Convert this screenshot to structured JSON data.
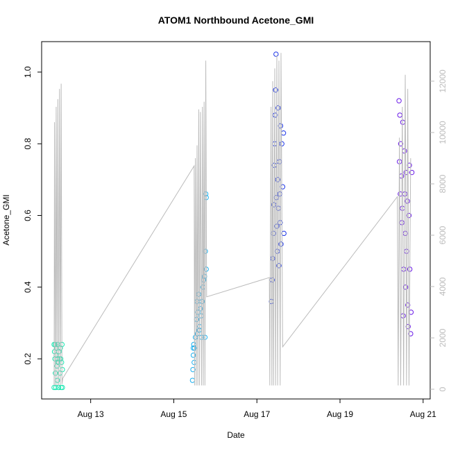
{
  "chart_data": {
    "type": "scatter",
    "title": "ATOM1 Northbound Acetone_GMI",
    "x_label": "Date",
    "y_label": "Acetone_GMI",
    "xlim": [
      11.82,
      21.17
    ],
    "xticks": [
      {
        "value": 13,
        "label": "Aug 13"
      },
      {
        "value": 15,
        "label": "Aug 15"
      },
      {
        "value": 17,
        "label": "Aug 17"
      },
      {
        "value": 19,
        "label": "Aug 19"
      },
      {
        "value": 21,
        "label": "Aug 21"
      }
    ],
    "ylim": [
      0.088,
      1.085
    ],
    "yticks": [
      0.2,
      0.4,
      0.6,
      0.8,
      {
        "value": 1,
        "label": "1.0"
      }
    ],
    "y2lim": [
      -378,
      13540
    ],
    "y2ticks": [
      0,
      2000,
      4000,
      6000,
      8000,
      10000,
      12000
    ],
    "y2color": "#bbbbbb",
    "series": [
      {
        "color": "#17e6b0",
        "x": [
          12.12,
          12.12,
          12.13,
          12.14,
          12.15,
          12.15,
          12.16,
          12.17,
          12.18,
          12.19,
          12.2,
          12.2,
          12.21,
          12.22,
          12.23,
          12.24,
          12.25,
          12.26,
          12.27,
          12.28,
          12.29,
          12.3,
          12.31,
          12.32,
          12.32
        ],
        "values": [
          0.24,
          0.12,
          0.22,
          0.2,
          0.16,
          0.24,
          0.12,
          0.21,
          0.23,
          0.18,
          0.2,
          0.14,
          0.24,
          0.19,
          0.12,
          0.22,
          0.2,
          0.16,
          0.23,
          0.2,
          0.12,
          0.19,
          0.24,
          0.17,
          0.12
        ]
      },
      {
        "color": "#1ab0f0",
        "x": [
          15.45,
          15.46,
          15.47,
          15.47,
          15.48,
          15.49,
          15.5,
          15.52,
          15.55,
          15.56,
          15.57,
          15.58,
          15.6,
          15.61,
          15.62,
          15.64,
          15.66,
          15.67,
          15.68,
          15.7,
          15.72,
          15.74,
          15.75,
          15.76,
          15.77,
          15.78,
          15.78
        ],
        "values": [
          0.14,
          0.17,
          0.21,
          0.23,
          0.24,
          0.19,
          0.23,
          0.26,
          0.31,
          0.36,
          0.27,
          0.33,
          0.38,
          0.28,
          0.29,
          0.34,
          0.32,
          0.26,
          0.36,
          0.4,
          0.42,
          0.43,
          0.26,
          0.5,
          0.66,
          0.65,
          0.45
        ]
      },
      {
        "color": "#1a33e8",
        "x": [
          17.35,
          17.37,
          17.38,
          17.4,
          17.41,
          17.42,
          17.43,
          17.44,
          17.45,
          17.46,
          17.47,
          17.48,
          17.49,
          17.5,
          17.51,
          17.52,
          17.53,
          17.54,
          17.55,
          17.56,
          17.57,
          17.58,
          17.6,
          17.62,
          17.64,
          17.65
        ],
        "values": [
          0.36,
          0.42,
          0.48,
          0.55,
          0.63,
          0.74,
          0.8,
          0.88,
          0.95,
          1.05,
          0.65,
          0.57,
          0.5,
          0.7,
          0.9,
          0.62,
          0.46,
          0.75,
          0.66,
          0.58,
          0.85,
          0.52,
          0.8,
          0.68,
          0.83,
          0.55
        ]
      },
      {
        "color": "#6a1ae8",
        "x": [
          20.42,
          20.43,
          20.44,
          20.45,
          20.46,
          20.48,
          20.49,
          20.5,
          20.51,
          20.52,
          20.53,
          20.55,
          20.56,
          20.57,
          20.58,
          20.59,
          20.6,
          20.62,
          20.63,
          20.64,
          20.66,
          20.67,
          20.68,
          20.7,
          20.71,
          20.73
        ],
        "values": [
          0.92,
          0.75,
          0.88,
          0.66,
          0.8,
          0.71,
          0.58,
          0.62,
          0.86,
          0.32,
          0.45,
          0.78,
          0.66,
          0.55,
          0.4,
          0.72,
          0.5,
          0.64,
          0.35,
          0.29,
          0.6,
          0.74,
          0.45,
          0.27,
          0.33,
          0.72
        ]
      },
      {
        "type": "line",
        "axis": "y2",
        "color": "#bbbbbb",
        "x": [
          12.12,
          12.13,
          12.15,
          12.17,
          12.19,
          12.21,
          12.23,
          12.25,
          12.27,
          12.29,
          12.31,
          12.33,
          15.49,
          15.5,
          15.52,
          15.54,
          15.56,
          15.58,
          15.6,
          15.62,
          15.64,
          15.67,
          15.69,
          15.71,
          15.73,
          15.75,
          15.77,
          15.79,
          17.3,
          17.31,
          17.34,
          17.36,
          17.38,
          17.4,
          17.43,
          17.45,
          17.48,
          17.5,
          17.53,
          17.56,
          17.58,
          17.62,
          20.38,
          20.4,
          20.43,
          20.46,
          20.5,
          20.53,
          20.57,
          20.6,
          20.63,
          20.66,
          20.7
        ],
        "values": [
          150,
          10400,
          150,
          11000,
          150,
          11300,
          150,
          11700,
          150,
          11900,
          200,
          430,
          8700,
          150,
          9000,
          150,
          9500,
          150,
          10900,
          150,
          10800,
          150,
          11000,
          150,
          11200,
          150,
          12800,
          3600,
          4350,
          150,
          11000,
          150,
          12000,
          150,
          12500,
          150,
          13000,
          150,
          12800,
          150,
          13100,
          1650,
          7500,
          150,
          9800,
          150,
          11000,
          150,
          12250,
          150,
          11700,
          150,
          9000
        ]
      }
    ]
  }
}
